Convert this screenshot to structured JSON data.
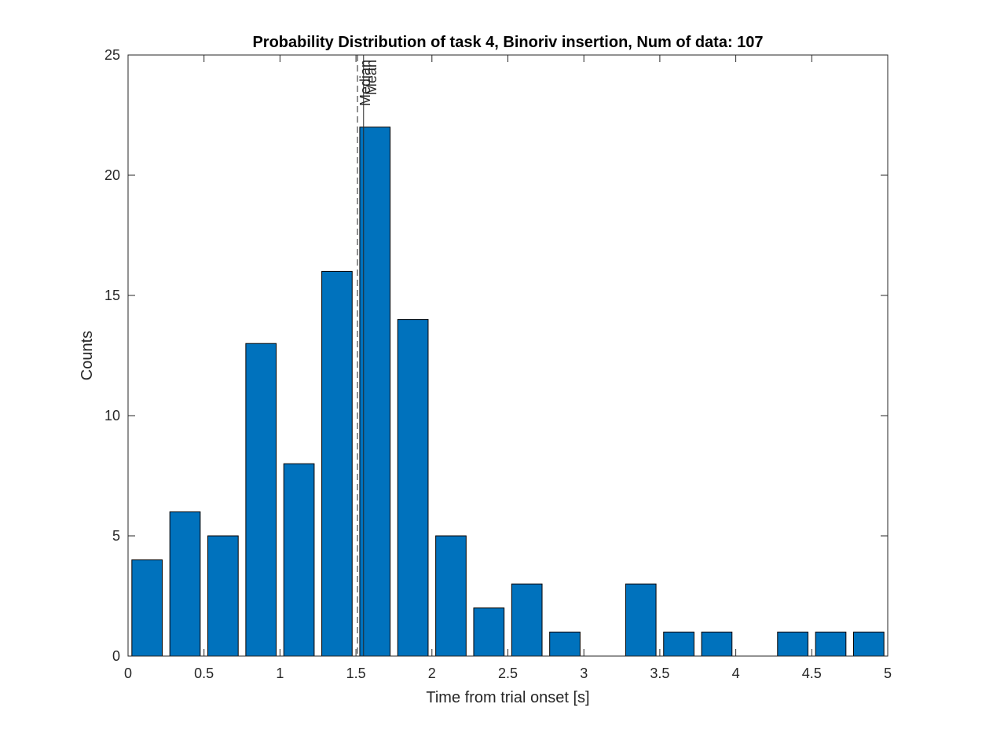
{
  "chart_data": {
    "type": "bar",
    "title": "Probability Distribution of task 4, Binoriv insertion, Num of data: 107",
    "xlabel": "Time from trial onset [s]",
    "ylabel": "Counts",
    "xlim": [
      0,
      5
    ],
    "ylim": [
      0,
      25
    ],
    "bin_width": 0.25,
    "bin_starts": [
      0,
      0.25,
      0.5,
      0.75,
      1.0,
      1.25,
      1.5,
      1.75,
      2.0,
      2.25,
      2.5,
      2.75,
      3.0,
      3.25,
      3.5,
      3.75,
      4.0,
      4.25,
      4.5,
      4.75
    ],
    "values": [
      4,
      6,
      5,
      13,
      8,
      16,
      22,
      14,
      5,
      2,
      3,
      1,
      0,
      3,
      1,
      1,
      0,
      1,
      1,
      1
    ],
    "xticks": [
      "0",
      "0.5",
      "1",
      "1.5",
      "2",
      "2.5",
      "3",
      "3.5",
      "4",
      "4.5",
      "5"
    ],
    "yticks": [
      "0",
      "5",
      "10",
      "15",
      "20",
      "25"
    ],
    "reference_lines": [
      {
        "label": "Median",
        "x": 1.51,
        "style": "dashed"
      },
      {
        "label": "Mean",
        "x": 1.55,
        "style": "solid"
      }
    ],
    "bar_color": "#0072BD",
    "grid": false
  }
}
